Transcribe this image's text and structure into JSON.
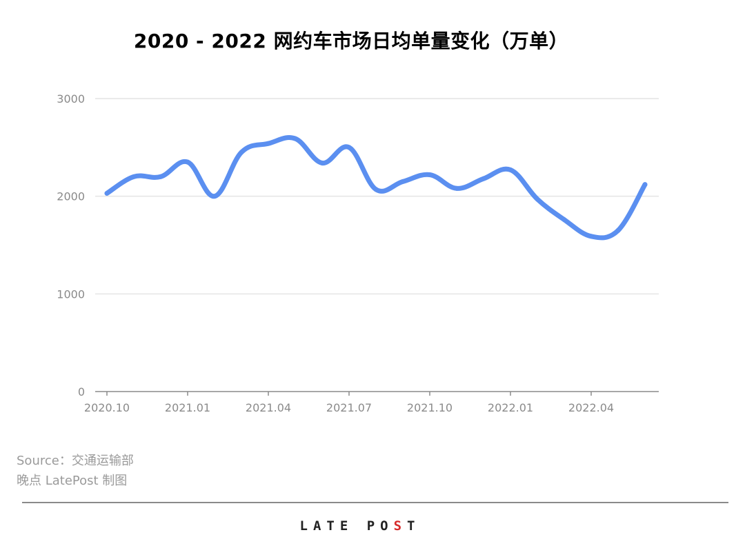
{
  "title": "2020 - 2022 网约车市场日均单量变化（万单）",
  "source_line": "Source：交通运输部",
  "credit_line": "晚点 LatePost 制图",
  "logo": {
    "text_before": "LATE PO",
    "accent": "S",
    "text_after": "T"
  },
  "colors": {
    "line": "#5b8ff0",
    "grid": "#e4e4e4",
    "axis": "#8a8a8a",
    "tick_text": "#8a8a8a",
    "accent": "#d62b2b"
  },
  "chart_data": {
    "type": "line",
    "title": "2020 - 2022 网约车市场日均单量变化（万单）",
    "xlabel": "",
    "ylabel": "",
    "ylim": [
      0,
      3000
    ],
    "y_ticks": [
      "0",
      "1000",
      "2000",
      "3000"
    ],
    "x_ticks": [
      "2020.10",
      "2021.01",
      "2021.04",
      "2021.07",
      "2021.10",
      "2022.01",
      "2022.04"
    ],
    "grid": true,
    "legend": "none",
    "x": [
      "2020.10",
      "2020.11",
      "2020.12",
      "2021.01",
      "2021.02",
      "2021.03",
      "2021.04",
      "2021.05",
      "2021.06",
      "2021.07",
      "2021.08",
      "2021.09",
      "2021.10",
      "2021.11",
      "2021.12",
      "2022.01",
      "2022.02",
      "2022.03",
      "2022.04",
      "2022.05",
      "2022.06"
    ],
    "series": [
      {
        "values": [
          2030,
          2200,
          2200,
          2350,
          2000,
          2450,
          2540,
          2590,
          2340,
          2500,
          2070,
          2150,
          2220,
          2080,
          2180,
          2270,
          1970,
          1760,
          1590,
          1650,
          2120
        ]
      }
    ]
  }
}
